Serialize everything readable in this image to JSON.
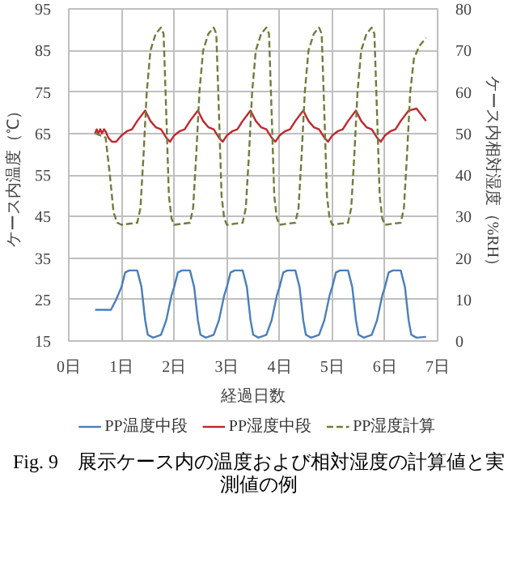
{
  "chart_data": {
    "type": "line",
    "xlabel": "経過日数",
    "ylabel": "ケース内温度（℃）",
    "y2label": "ケース内相対湿度（%RH）",
    "xlim": [
      0,
      7
    ],
    "xticks": [
      {
        "value": 0,
        "label": "0日"
      },
      {
        "value": 1,
        "label": "1日"
      },
      {
        "value": 2,
        "label": "2日"
      },
      {
        "value": 3,
        "label": "3日"
      },
      {
        "value": 4,
        "label": "4日"
      },
      {
        "value": 5,
        "label": "5日"
      },
      {
        "value": 6,
        "label": "6日"
      },
      {
        "value": 7,
        "label": "7日"
      }
    ],
    "ylim": [
      15,
      95
    ],
    "yticks": [
      15,
      25,
      35,
      45,
      55,
      65,
      75,
      85,
      95
    ],
    "y2lim": [
      0,
      80
    ],
    "y2ticks": [
      0,
      10,
      20,
      30,
      40,
      50,
      60,
      70,
      80
    ],
    "grid": true,
    "legend": "bottom",
    "marker": "none",
    "annotations": [
      "Fig. 9　展示ケース内の温度および相対湿度の計算値と実測値の例"
    ],
    "series": [
      {
        "name": "PP温度中段",
        "color": "#4a7ebb",
        "line_style": "solid",
        "x": [
          0.5,
          0.8,
          0.9,
          1,
          1.07,
          1.15,
          1.3,
          1.38,
          1.45,
          1.5,
          1.6,
          1.75,
          1.85,
          1.95,
          2,
          2.07,
          2.15,
          2.3,
          2.38,
          2.45,
          2.5,
          2.6,
          2.75,
          2.85,
          2.95,
          3,
          3.07,
          3.15,
          3.3,
          3.38,
          3.45,
          3.5,
          3.6,
          3.75,
          3.85,
          3.95,
          4,
          4.07,
          4.15,
          4.3,
          4.38,
          4.45,
          4.5,
          4.6,
          4.75,
          4.85,
          4.95,
          5,
          5.07,
          5.15,
          5.3,
          5.38,
          5.45,
          5.5,
          5.6,
          5.75,
          5.85,
          5.95,
          6,
          6.07,
          6.15,
          6.3,
          6.38,
          6.45,
          6.5,
          6.6,
          6.78
        ],
        "values": [
          22.5,
          22.5,
          25,
          28,
          31.5,
          32,
          32,
          28,
          20,
          16.5,
          15.8,
          16.5,
          20,
          26,
          28,
          31.5,
          32,
          32,
          28,
          20,
          16.5,
          15.8,
          16.5,
          20,
          26,
          28,
          31.5,
          32,
          32,
          28,
          20,
          16.5,
          15.8,
          16.5,
          20,
          26,
          28,
          31.5,
          32,
          32,
          28,
          20,
          16.5,
          15.8,
          16.5,
          20,
          26,
          28,
          31.5,
          32,
          32,
          28,
          20,
          16.5,
          15.8,
          16.5,
          20,
          26,
          28,
          31.5,
          32,
          32,
          28,
          20,
          16.5,
          15.8,
          16
        ]
      },
      {
        "name": "PP湿度中段",
        "color": "#c0282d",
        "line_style": "solid",
        "axis": "y2",
        "x": [
          0.5,
          0.53,
          0.56,
          0.6,
          0.63,
          0.67,
          0.7,
          0.75,
          0.82,
          0.9,
          1,
          1.1,
          1.2,
          1.3,
          1.45,
          1.55,
          1.65,
          1.75,
          1.85,
          1.92,
          2,
          2.1,
          2.2,
          2.3,
          2.45,
          2.55,
          2.65,
          2.75,
          2.85,
          2.92,
          3,
          3.1,
          3.2,
          3.3,
          3.45,
          3.55,
          3.65,
          3.75,
          3.85,
          3.92,
          4,
          4.1,
          4.2,
          4.3,
          4.45,
          4.55,
          4.65,
          4.75,
          4.85,
          4.92,
          5,
          5.1,
          5.2,
          5.3,
          5.45,
          5.55,
          5.65,
          5.75,
          5.85,
          5.92,
          6,
          6.1,
          6.2,
          6.3,
          6.45,
          6.6,
          6.78
        ],
        "values": [
          50,
          51,
          50,
          51,
          50,
          51,
          50.5,
          49,
          48,
          48,
          49.5,
          50.5,
          51,
          53,
          55.5,
          53,
          51.5,
          51,
          49,
          48,
          49.5,
          50.5,
          51,
          53,
          55.5,
          53,
          51.5,
          51,
          49,
          48,
          49.5,
          50.5,
          51,
          53,
          55.5,
          53,
          51.5,
          51,
          49,
          48,
          49.5,
          50.5,
          51,
          53,
          55.5,
          53,
          51.5,
          51,
          49,
          48,
          49.5,
          50.5,
          51,
          53,
          55.5,
          53,
          51.5,
          51,
          49,
          48,
          49.5,
          50.5,
          51,
          53,
          55.5,
          56,
          53
        ]
      },
      {
        "name": "PP湿度計算",
        "color": "#6e7d3c",
        "line_style": "dashed",
        "axis": "y2",
        "x": [
          0.5,
          0.7,
          0.78,
          0.85,
          0.92,
          1,
          1.3,
          1.36,
          1.42,
          1.48,
          1.55,
          1.65,
          1.75,
          1.8,
          1.85,
          1.9,
          1.95,
          2,
          2.3,
          2.36,
          2.42,
          2.48,
          2.55,
          2.65,
          2.75,
          2.8,
          2.85,
          2.9,
          2.95,
          3,
          3.3,
          3.36,
          3.42,
          3.48,
          3.55,
          3.65,
          3.75,
          3.8,
          3.85,
          3.9,
          3.95,
          4,
          4.3,
          4.36,
          4.42,
          4.48,
          4.55,
          4.65,
          4.75,
          4.8,
          4.85,
          4.9,
          4.95,
          5,
          5.3,
          5.36,
          5.42,
          5.48,
          5.55,
          5.65,
          5.75,
          5.8,
          5.85,
          5.9,
          5.95,
          6,
          6.3,
          6.36,
          6.42,
          6.48,
          6.55,
          6.65,
          6.78
        ],
        "values": [
          50,
          49,
          40,
          31,
          28.5,
          28,
          28.5,
          32,
          45,
          60,
          70,
          74,
          75.5,
          74,
          55,
          35,
          29.5,
          28,
          28.5,
          32,
          45,
          60,
          70,
          74,
          75.5,
          74,
          55,
          35,
          29.5,
          28,
          28.5,
          32,
          45,
          60,
          70,
          74,
          75.5,
          74,
          55,
          35,
          29.5,
          28,
          28.5,
          32,
          45,
          60,
          70,
          74,
          75.5,
          74,
          55,
          35,
          29.5,
          28,
          28.5,
          32,
          45,
          60,
          70,
          74,
          75.5,
          74,
          55,
          35,
          29.5,
          28,
          28.5,
          32,
          45,
          60,
          68,
          71,
          73
        ]
      }
    ]
  }
}
